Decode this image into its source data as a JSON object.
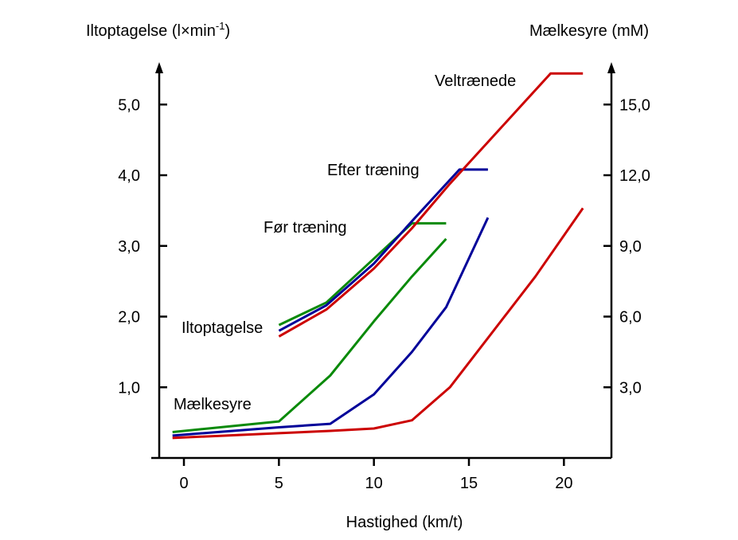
{
  "chart_data": {
    "type": "line",
    "title": "",
    "xlabel": "Hastighed (km/t)",
    "ylabel_left": "Iltoptagelse (l×min",
    "ylabel_left_sup": "-1",
    "ylabel_left_close": ")",
    "ylabel_right": "Mælkesyre (mM)",
    "x_ticks": [
      0,
      5,
      10,
      15,
      20
    ],
    "x_tick_labels": [
      "0",
      "5",
      "10",
      "15",
      "20"
    ],
    "y_left_ticks": [
      1,
      2,
      3,
      4,
      5
    ],
    "y_left_tick_labels": [
      "1,0",
      "2,0",
      "3,0",
      "4,0",
      "5,0"
    ],
    "y_right_ticks": [
      3,
      6,
      9,
      12,
      15
    ],
    "y_right_tick_labels": [
      "3,0",
      "6,0",
      "9,0",
      "12,0",
      "15,0"
    ],
    "xlim": [
      -1.3,
      22.5
    ],
    "ylim_left": [
      0,
      5.6
    ],
    "ylim_right": [
      0,
      16.8
    ],
    "group_labels": {
      "iltoptagelse": "Iltoptagelse",
      "maelkesyre": "Mælkesyre",
      "foer": "Før træning",
      "efter": "Efter træning",
      "veltraenede": "Veltrænede"
    },
    "colors": {
      "foer": "#0a8a0a",
      "efter": "#000099",
      "veltraenede": "#cc0000",
      "axis": "#000000"
    },
    "series": [
      {
        "group": "foer",
        "measure": "Iltoptagelse",
        "axis": "left",
        "points": [
          [
            5,
            1.88
          ],
          [
            7.5,
            2.2
          ],
          [
            10,
            2.82
          ],
          [
            12,
            3.32
          ],
          [
            13.8,
            3.32
          ]
        ]
      },
      {
        "group": "efter",
        "measure": "Iltoptagelse",
        "axis": "left",
        "points": [
          [
            5,
            1.8
          ],
          [
            7.5,
            2.16
          ],
          [
            10,
            2.75
          ],
          [
            12,
            3.35
          ],
          [
            14.5,
            4.08
          ],
          [
            16,
            4.08
          ]
        ]
      },
      {
        "group": "veltraenede",
        "measure": "Iltoptagelse",
        "axis": "left",
        "points": [
          [
            5,
            1.72
          ],
          [
            7.5,
            2.1
          ],
          [
            10,
            2.68
          ],
          [
            12,
            3.25
          ],
          [
            14,
            3.88
          ],
          [
            19.3,
            5.44
          ],
          [
            21,
            5.44
          ]
        ]
      },
      {
        "group": "foer",
        "measure": "Mælkesyre",
        "axis": "right",
        "points": [
          [
            -0.6,
            1.1
          ],
          [
            5,
            1.55
          ],
          [
            7.7,
            3.5
          ],
          [
            10,
            5.8
          ],
          [
            12,
            7.7
          ],
          [
            13.8,
            9.3
          ]
        ]
      },
      {
        "group": "efter",
        "measure": "Mælkesyre",
        "axis": "right",
        "points": [
          [
            -0.6,
            0.95
          ],
          [
            5,
            1.3
          ],
          [
            7.7,
            1.45
          ],
          [
            10,
            2.7
          ],
          [
            12,
            4.5
          ],
          [
            13.8,
            6.4
          ],
          [
            16,
            10.2
          ]
        ]
      },
      {
        "group": "veltraenede",
        "measure": "Mælkesyre",
        "axis": "right",
        "points": [
          [
            -0.6,
            0.85
          ],
          [
            5,
            1.05
          ],
          [
            7.7,
            1.15
          ],
          [
            10,
            1.25
          ],
          [
            12,
            1.6
          ],
          [
            14,
            3.0
          ],
          [
            18.5,
            7.7
          ],
          [
            21,
            10.6
          ]
        ]
      }
    ]
  }
}
